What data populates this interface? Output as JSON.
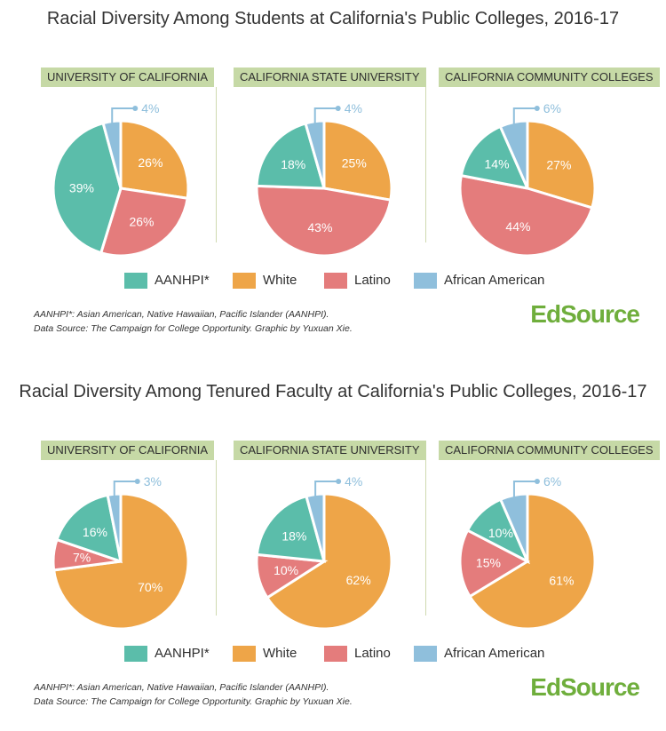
{
  "colors": {
    "AANHPI": "#5bbdaa",
    "White": "#eea548",
    "Latino": "#e47c7c",
    "African American": "#8fbfdc",
    "badge": "#c6d9a6",
    "logo": "#6fae3c"
  },
  "legend": [
    {
      "label": "AANHPI*",
      "key": "AANHPI"
    },
    {
      "label": "White",
      "key": "White"
    },
    {
      "label": "Latino",
      "key": "Latino"
    },
    {
      "label": "African American",
      "key": "African American"
    }
  ],
  "footnote_line1": "AANHPI*: Asian American, Native Hawaiian, Pacific Islander (AANHPI).",
  "footnote_line2": "Data Source: The Campaign for College Opportunity. Graphic by Yuxuan Xie.",
  "logo": {
    "part1": "Ed",
    "part2": "Source"
  },
  "chart_data": [
    {
      "type": "pie",
      "title": "Racial Diversity Among Students at California's Public Colleges, 2016-17",
      "panels": [
        {
          "name": "UNIVERSITY OF CALIFORNIA",
          "slices": [
            {
              "label": "White",
              "value": 26,
              "text": "26%"
            },
            {
              "label": "Latino",
              "value": 26,
              "text": "26%"
            },
            {
              "label": "AANHPI",
              "value": 39,
              "text": "39%"
            },
            {
              "label": "African American",
              "value": 4,
              "text": "4%"
            }
          ]
        },
        {
          "name": "CALIFORNIA STATE UNIVERSITY",
          "slices": [
            {
              "label": "White",
              "value": 25,
              "text": "25%"
            },
            {
              "label": "Latino",
              "value": 43,
              "text": "43%"
            },
            {
              "label": "AANHPI",
              "value": 18,
              "text": "18%"
            },
            {
              "label": "African American",
              "value": 4,
              "text": "4%"
            }
          ]
        },
        {
          "name": "CALIFORNIA COMMUNITY COLLEGES",
          "slices": [
            {
              "label": "White",
              "value": 27,
              "text": "27%"
            },
            {
              "label": "Latino",
              "value": 44,
              "text": "44%"
            },
            {
              "label": "AANHPI",
              "value": 14,
              "text": "14%"
            },
            {
              "label": "African American",
              "value": 6,
              "text": "6%"
            }
          ]
        }
      ]
    },
    {
      "type": "pie",
      "title": "Racial Diversity Among Tenured Faculty at California's Public Colleges, 2016-17",
      "panels": [
        {
          "name": "UNIVERSITY OF CALIFORNIA",
          "slices": [
            {
              "label": "White",
              "value": 70,
              "text": "70%"
            },
            {
              "label": "Latino",
              "value": 7,
              "text": "7%"
            },
            {
              "label": "AANHPI",
              "value": 16,
              "text": "16%"
            },
            {
              "label": "African American",
              "value": 3,
              "text": "3%"
            }
          ]
        },
        {
          "name": "CALIFORNIA STATE UNIVERSITY",
          "slices": [
            {
              "label": "White",
              "value": 62,
              "text": "62%"
            },
            {
              "label": "Latino",
              "value": 10,
              "text": "10%"
            },
            {
              "label": "AANHPI",
              "value": 18,
              "text": "18%"
            },
            {
              "label": "African American",
              "value": 4,
              "text": "4%"
            }
          ]
        },
        {
          "name": "CALIFORNIA COMMUNITY COLLEGES",
          "slices": [
            {
              "label": "White",
              "value": 61,
              "text": "61%"
            },
            {
              "label": "Latino",
              "value": 15,
              "text": "15%"
            },
            {
              "label": "AANHPI",
              "value": 10,
              "text": "10%"
            },
            {
              "label": "African American",
              "value": 6,
              "text": "6%"
            }
          ]
        }
      ]
    }
  ]
}
